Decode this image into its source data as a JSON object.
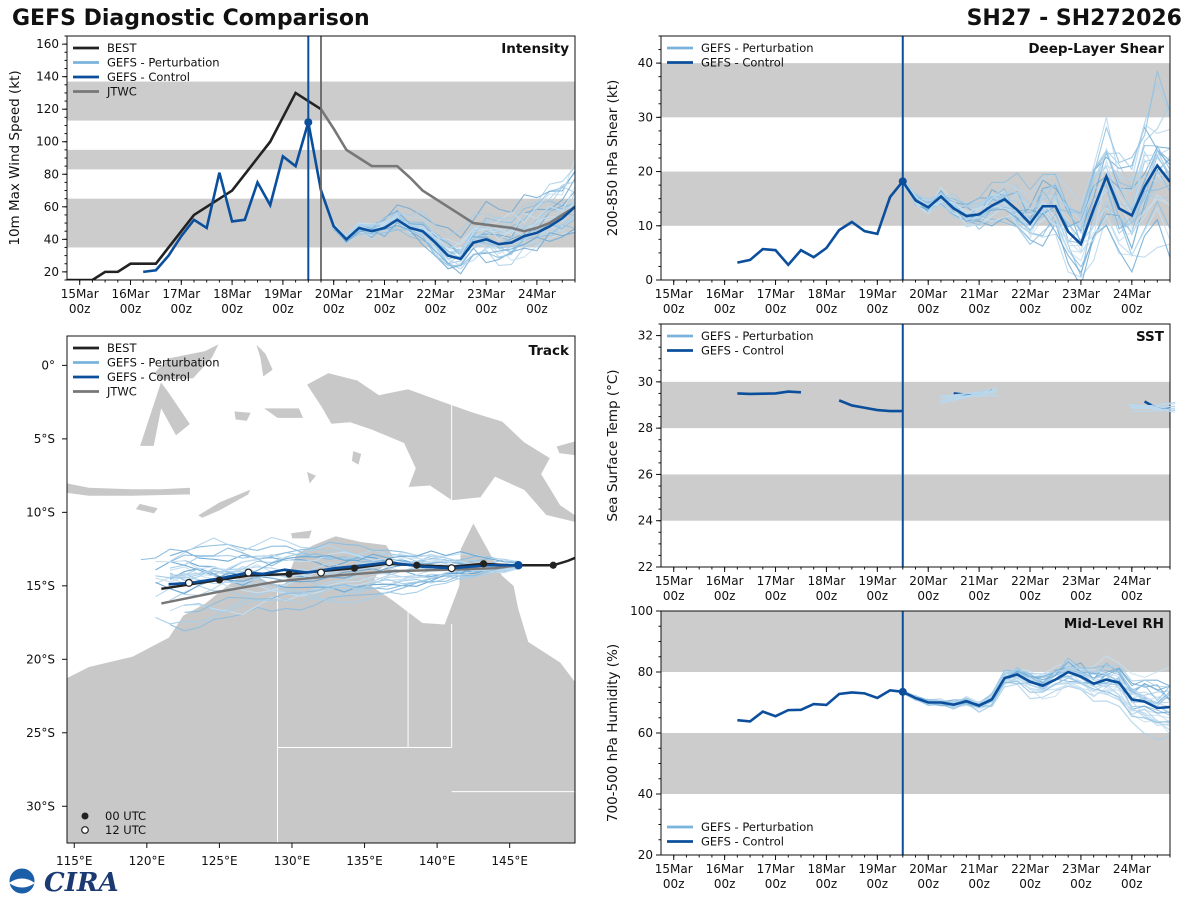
{
  "header": {
    "title": "GEFS Diagnostic Comparison",
    "storm_id": "SH27 - SH272026"
  },
  "colors": {
    "best": "#222222",
    "perturbation": "#7ab4dd",
    "control": "#0b4f9c",
    "jtwc": "#777777",
    "band": "#cccccc",
    "land": "#c8c8c8"
  },
  "time_axis": {
    "labels": [
      "15Mar\n00z",
      "16Mar\n00z",
      "17Mar\n00z",
      "18Mar\n00z",
      "19Mar\n00z",
      "20Mar\n00z",
      "21Mar\n00z",
      "22Mar\n00z",
      "23Mar\n00z",
      "24Mar\n00z"
    ],
    "init_day": 4.5
  },
  "legend": {
    "best": "BEST",
    "perturbation": "GEFS - Perturbation",
    "control": "GEFS - Control",
    "jtwc": "JTWC",
    "utc00": "00 UTC",
    "utc12": "12 UTC"
  },
  "chart_data": [
    {
      "id": "intensity",
      "type": "line",
      "title": "Intensity",
      "ylabel": "10m Max Wind Speed (kt)",
      "xlim": [
        -0.25,
        9.75
      ],
      "ylim": [
        15,
        165
      ],
      "yticks": [
        20,
        40,
        60,
        80,
        100,
        120,
        140,
        160
      ],
      "bands": [
        [
          35,
          65
        ],
        [
          83,
          95
        ],
        [
          113,
          137
        ]
      ],
      "jtwc_init_line": 4.75,
      "series": [
        {
          "name": "BEST",
          "x": [
            -0.25,
            0.25,
            0.5,
            0.75,
            1.0,
            1.25,
            1.5,
            1.75,
            2.0,
            2.25,
            2.5,
            2.75,
            3.0,
            3.25,
            3.5,
            3.75,
            4.0,
            4.25,
            4.5,
            4.75
          ],
          "y": [
            15,
            15,
            20,
            20,
            25,
            25,
            25,
            35,
            45,
            55,
            60,
            65,
            70,
            80,
            90,
            100,
            115,
            130,
            125,
            120
          ]
        },
        {
          "name": "GEFS - Control",
          "x": [
            1.25,
            1.5,
            1.75,
            2.0,
            2.25,
            2.5,
            2.75,
            3.0,
            3.25,
            3.5,
            3.75,
            4.0,
            4.25,
            4.5,
            4.75,
            5.0,
            5.25,
            5.5,
            5.75,
            6.0,
            6.25,
            6.5,
            6.75,
            7.0,
            7.25,
            7.5,
            7.75,
            8.0,
            8.25,
            8.5,
            8.75,
            9.0,
            9.25,
            9.5,
            9.75
          ],
          "y": [
            20,
            21,
            30,
            42,
            52,
            47,
            81,
            51,
            52,
            75,
            61,
            91,
            85,
            112,
            70,
            48,
            40,
            47,
            45,
            47,
            52,
            47,
            45,
            38,
            30,
            28,
            38,
            40,
            37,
            38,
            42,
            44,
            48,
            53,
            60
          ]
        },
        {
          "name": "JTWC",
          "x": [
            4.75,
            5.0,
            5.25,
            5.5,
            5.75,
            6.0,
            6.25,
            6.5,
            6.75,
            7.0,
            7.25,
            7.5,
            7.75,
            8.0,
            8.25,
            8.5,
            8.75,
            9.0,
            9.25,
            9.5,
            9.75
          ],
          "y": [
            120,
            108,
            95,
            90,
            85,
            85,
            85,
            78,
            70,
            65,
            60,
            55,
            50,
            49,
            48,
            47,
            45,
            47,
            50,
            55,
            60
          ]
        }
      ]
    },
    {
      "id": "shear",
      "type": "line",
      "title": "Deep-Layer Shear",
      "ylabel": "200-850 hPa Shear (kt)",
      "xlim": [
        -0.25,
        9.75
      ],
      "ylim": [
        0,
        45
      ],
      "yticks": [
        0,
        10,
        20,
        30,
        40
      ],
      "bands": [
        [
          10,
          20
        ],
        [
          30,
          40
        ]
      ],
      "series": [
        {
          "name": "GEFS - Control",
          "x": [
            1.25,
            1.5,
            1.75,
            2.0,
            2.25,
            2.5,
            2.75,
            3.0,
            3.25,
            3.5,
            3.75,
            4.0,
            4.25,
            4.5,
            4.75,
            5.0,
            5.25,
            5.5,
            5.75,
            6.0,
            6.25,
            6.5,
            6.75,
            7.0,
            7.25,
            7.5,
            7.75,
            8.0,
            8.25,
            8.5,
            8.75,
            9.0,
            9.25,
            9.5,
            9.75
          ],
          "y": [
            3.2,
            3.7,
            5.7,
            5.5,
            2.8,
            5.5,
            4.2,
            5.9,
            9.2,
            10.7,
            9.0,
            8.5,
            15.3,
            18.2,
            14.7,
            13.4,
            15.4,
            13.2,
            11.8,
            12.1,
            13.7,
            14.9,
            12.9,
            10.4,
            13.6,
            13.6,
            8.9,
            6.6,
            13.1,
            19.1,
            13.2,
            11.9,
            17.2,
            21.1,
            18.1
          ]
        }
      ]
    },
    {
      "id": "sst",
      "type": "line",
      "title": "SST",
      "ylabel": "Sea Surface Temp (°C)",
      "xlim": [
        -0.25,
        9.75
      ],
      "ylim": [
        22,
        32.5
      ],
      "yticks": [
        22,
        24,
        26,
        28,
        30,
        32
      ],
      "bands": [
        [
          24,
          26
        ],
        [
          28,
          30
        ]
      ],
      "series": [
        {
          "name": "GEFS - Control",
          "segments": [
            {
              "x": [
                1.25,
                1.5,
                1.75,
                2.0,
                2.25,
                2.5
              ],
              "y": [
                29.5,
                29.48,
                29.49,
                29.5,
                29.58,
                29.55
              ]
            },
            {
              "x": [
                3.25,
                3.5,
                3.75,
                4.0,
                4.25,
                4.5
              ],
              "y": [
                29.2,
                28.98,
                28.88,
                28.78,
                28.74,
                28.74
              ]
            },
            {
              "x": [
                5.5,
                5.75,
                6.0,
                6.25
              ],
              "y": [
                29.5,
                29.44,
                29.52,
                29.63
              ]
            },
            {
              "x": [
                9.25,
                9.5,
                9.75
              ],
              "y": [
                29.15,
                28.85,
                28.88
              ]
            }
          ]
        }
      ]
    },
    {
      "id": "rh",
      "type": "line",
      "title": "Mid-Level RH",
      "ylabel": "700-500 hPa Humidity (%)",
      "xlim": [
        -0.25,
        9.75
      ],
      "ylim": [
        20,
        100
      ],
      "yticks": [
        20,
        40,
        60,
        80,
        100
      ],
      "bands": [
        [
          40,
          60
        ],
        [
          80,
          100
        ]
      ],
      "series": [
        {
          "name": "GEFS - Control",
          "x": [
            1.25,
            1.5,
            1.75,
            2.0,
            2.25,
            2.5,
            2.75,
            3.0,
            3.25,
            3.5,
            3.75,
            4.0,
            4.25,
            4.5,
            4.75,
            5.0,
            5.25,
            5.5,
            5.75,
            6.0,
            6.25,
            6.5,
            6.75,
            7.0,
            7.25,
            7.5,
            7.75,
            8.0,
            8.25,
            8.5,
            8.75,
            9.0,
            9.25,
            9.5,
            9.75
          ],
          "y": [
            64.2,
            63.8,
            67.0,
            65.5,
            67.5,
            67.6,
            69.5,
            69.2,
            72.8,
            73.3,
            73.0,
            71.5,
            74.0,
            73.5,
            71.5,
            70.0,
            70.0,
            69.3,
            70.4,
            69.0,
            71.0,
            78.0,
            79.2,
            76.8,
            75.5,
            77.5,
            80.0,
            78.5,
            76.2,
            77.5,
            76.5,
            71.0,
            70.3,
            68.2,
            68.5
          ]
        }
      ]
    },
    {
      "id": "track",
      "type": "scatter",
      "title": "Track",
      "xlim": [
        114.5,
        149.5
      ],
      "ylim": [
        -32.5,
        2.0
      ],
      "xticks": [
        115,
        120,
        125,
        130,
        135,
        140,
        145
      ],
      "xtick_labels": [
        "115°E",
        "120°E",
        "125°E",
        "130°E",
        "135°E",
        "140°E",
        "145°E"
      ],
      "yticks": [
        0,
        -5,
        -10,
        -15,
        -20,
        -25,
        -30
      ],
      "ytick_labels": [
        "0°",
        "5°S",
        "10°S",
        "15°S",
        "20°S",
        "25°S",
        "30°S"
      ],
      "best": {
        "lon": [
          149.5,
          149.0,
          148.0,
          146.0,
          145.0,
          143.2,
          141.0,
          138.6,
          136.5,
          134.3,
          132.0,
          129.8,
          127.0,
          125.0,
          123.0,
          121.0
        ],
        "lat": [
          -13.1,
          -13.3,
          -13.6,
          -13.6,
          -13.6,
          -13.5,
          -13.7,
          -13.6,
          -13.5,
          -13.8,
          -14.0,
          -14.2,
          -14.3,
          -14.6,
          -14.9,
          -15.2
        ]
      },
      "best_markers_00": [
        [
          148.0,
          -13.6
        ],
        [
          143.2,
          -13.5
        ],
        [
          138.6,
          -13.6
        ],
        [
          134.3,
          -13.8
        ],
        [
          129.8,
          -14.2
        ],
        [
          125.0,
          -14.6
        ]
      ],
      "control": {
        "lon": [
          145.6,
          143.5,
          141.0,
          139.0,
          136.7,
          135.0,
          133.0,
          131.0,
          129.5,
          128.0,
          127.0,
          125.0,
          123.0,
          121.5
        ],
        "lat": [
          -13.6,
          -13.6,
          -13.8,
          -13.7,
          -13.4,
          -13.6,
          -13.8,
          -14.1,
          -13.9,
          -14.2,
          -14.1,
          -14.5,
          -14.8,
          -14.9
        ]
      },
      "control_markers_12": [
        [
          141.0,
          -13.8
        ],
        [
          136.7,
          -13.4
        ],
        [
          132.0,
          -14.1
        ],
        [
          127.0,
          -14.1
        ],
        [
          122.9,
          -14.8
        ]
      ],
      "jtwc": {
        "lon": [
          145.6,
          144.0,
          141.0,
          137.0,
          133.0,
          129.0,
          125.0,
          121.0
        ],
        "lat": [
          -13.6,
          -13.8,
          -13.9,
          -14.0,
          -14.3,
          -14.7,
          -15.4,
          -16.2
        ]
      }
    }
  ]
}
